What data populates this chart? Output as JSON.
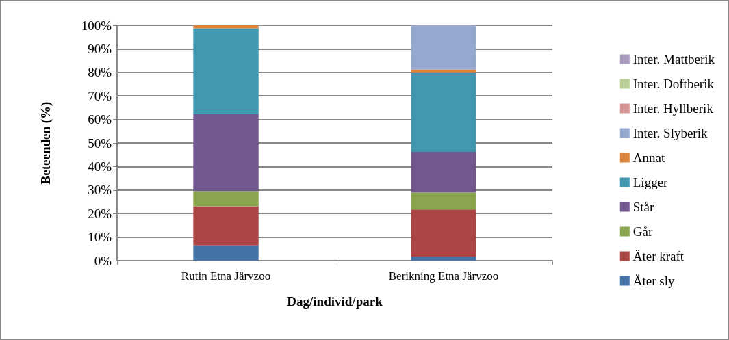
{
  "chart_data": {
    "type": "bar",
    "stacked": true,
    "xlabel": "Dag/individ/park",
    "ylabel": "Beteenden (%)",
    "categories": [
      "Rutin Etna Järvzoo",
      "Berikning Etna Järvzoo"
    ],
    "series": [
      {
        "name": "Äter sly",
        "color": "#4572a7",
        "values": [
          6.5,
          1.7
        ]
      },
      {
        "name": "Äter kraft",
        "color": "#aa4643",
        "values": [
          16.6,
          20.0
        ]
      },
      {
        "name": "Går",
        "color": "#89a54e",
        "values": [
          6.5,
          7.3
        ]
      },
      {
        "name": "Står",
        "color": "#71588f",
        "values": [
          32.6,
          17.2
        ]
      },
      {
        "name": "Ligger",
        "color": "#4198af",
        "values": [
          36.5,
          33.8
        ]
      },
      {
        "name": "Annat",
        "color": "#db843d",
        "values": [
          1.3,
          1.2
        ]
      },
      {
        "name": "Inter. Slyberik",
        "color": "#95a9d0",
        "values": [
          0,
          18.8
        ]
      },
      {
        "name": "Inter. Hyllberik",
        "color": "#d69594",
        "values": [
          0,
          0
        ]
      },
      {
        "name": "Inter. Doftberik",
        "color": "#b9cf96",
        "values": [
          0,
          0
        ]
      },
      {
        "name": "Inter. Mattberik",
        "color": "#a99bbd",
        "values": [
          0,
          0
        ]
      }
    ],
    "ylim": [
      0,
      100
    ],
    "yticks": [
      {
        "value": 0,
        "label": "0%"
      },
      {
        "value": 10,
        "label": "10%"
      },
      {
        "value": 20,
        "label": "20%"
      },
      {
        "value": 30,
        "label": "30%"
      },
      {
        "value": 40,
        "label": "40%"
      },
      {
        "value": 50,
        "label": "50%"
      },
      {
        "value": 60,
        "label": "60%"
      },
      {
        "value": 70,
        "label": "70%"
      },
      {
        "value": 80,
        "label": "80%"
      },
      {
        "value": 90,
        "label": "90%"
      },
      {
        "value": 100,
        "label": "100%"
      }
    ],
    "grid": "y",
    "legend": "right"
  }
}
